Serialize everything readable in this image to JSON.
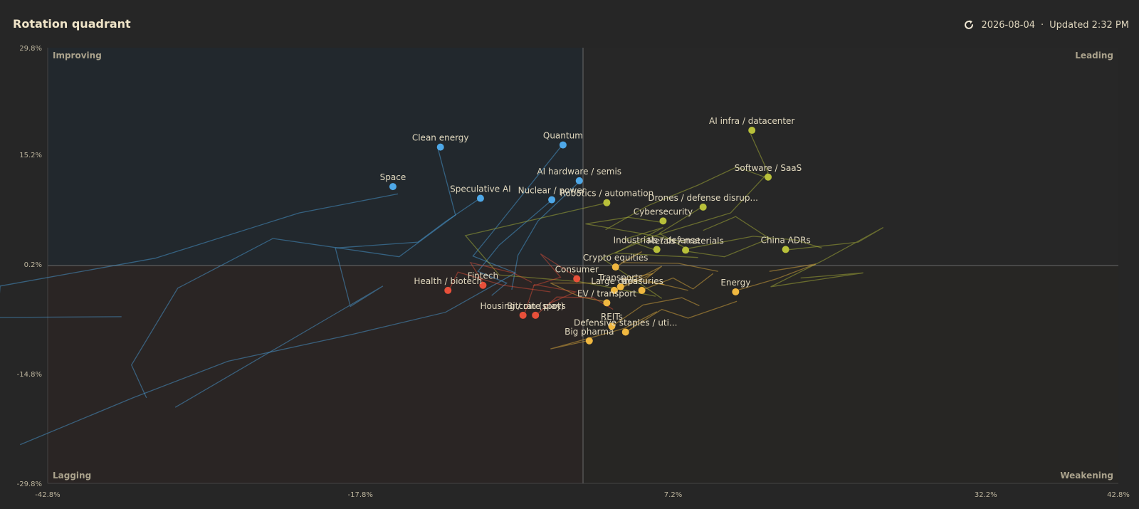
{
  "header": {
    "title": "Rotation quadrant",
    "date": "2026-08-04",
    "separator": " · ",
    "updated": "Updated 2:32 PM"
  },
  "colors": {
    "background": "#262626",
    "improving": "#4ea8e8",
    "leading": "#b8c03a",
    "weakening": "#f0b840",
    "lagging": "#e8503a",
    "axis_line": "#6a6a6a"
  },
  "icons": {
    "refresh": "refresh-icon"
  },
  "chart_data": {
    "type": "scatter",
    "title": "",
    "xlabel": "",
    "ylabel": "",
    "xlim": [
      -42.8,
      42.8
    ],
    "ylim": [
      -29.8,
      29.8
    ],
    "x_ticks": [
      -42.8,
      -17.8,
      7.2,
      32.2,
      42.8
    ],
    "x_tick_labels": [
      "-42.8%",
      "-17.8%",
      "7.2%",
      "32.2%",
      "42.8%"
    ],
    "y_ticks": [
      29.8,
      15.2,
      0.2,
      -14.8,
      -29.8
    ],
    "y_tick_labels": [
      "29.8%",
      "15.2%",
      "0.2%",
      "-14.8%",
      "-29.8%"
    ],
    "quadrants": {
      "top_left": "Improving",
      "top_right": "Leading",
      "bottom_left": "Lagging",
      "bottom_right": "Weakening"
    },
    "grid": false,
    "points": [
      {
        "name": "Space",
        "x": -15.2,
        "y": 10.8,
        "quadrant": "improving",
        "trail": [
          [
            -14.8,
            9.8
          ],
          [
            -22.7,
            7.2
          ],
          [
            -34.2,
            1.0
          ],
          [
            -46.6,
            -2.8
          ],
          [
            -46.8,
            -7.1
          ],
          [
            -36.9,
            -7.0
          ]
        ]
      },
      {
        "name": "Clean energy",
        "x": -11.4,
        "y": 16.2,
        "quadrant": "improving",
        "trail": [
          [
            -11.6,
            16.0
          ],
          [
            -10.2,
            6.9
          ],
          [
            -14.7,
            1.2
          ],
          [
            -24.8,
            3.7
          ],
          [
            -32.4,
            -3.1
          ],
          [
            -36.1,
            -13.6
          ],
          [
            -34.9,
            -18.1
          ]
        ]
      },
      {
        "name": "Speculative AI",
        "x": -8.2,
        "y": 9.2,
        "quadrant": "improving",
        "trail": [
          [
            -8.4,
            9.0
          ],
          [
            -11.0,
            6.0
          ],
          [
            -13.2,
            3.2
          ],
          [
            -19.8,
            2.4
          ],
          [
            -18.6,
            -5.6
          ],
          [
            -16.0,
            -2.8
          ],
          [
            -20.6,
            -7.4
          ],
          [
            -32.6,
            -19.4
          ]
        ]
      },
      {
        "name": "Quantum",
        "x": -1.6,
        "y": 16.5,
        "quadrant": "improving",
        "trail": [
          [
            -1.8,
            16.2
          ],
          [
            -7.5,
            4.0
          ],
          [
            -8.8,
            1.3
          ],
          [
            -5.4,
            -1.0
          ],
          [
            -11.0,
            -6.4
          ],
          [
            -18.4,
            -9.4
          ],
          [
            -28.4,
            -13.1
          ],
          [
            -36.0,
            -18.1
          ],
          [
            -45.0,
            -24.5
          ]
        ]
      },
      {
        "name": "AI hardware / semis",
        "x": -0.3,
        "y": 11.6,
        "quadrant": "improving",
        "trail": [
          [
            -0.4,
            11.3
          ],
          [
            -3.6,
            6.1
          ],
          [
            -5.2,
            1.4
          ],
          [
            -5.7,
            -3.3
          ]
        ]
      },
      {
        "name": "Nuclear / power",
        "x": -2.5,
        "y": 9.0,
        "quadrant": "improving",
        "trail": [
          [
            -2.6,
            8.8
          ],
          [
            -6.7,
            2.8
          ],
          [
            -8.4,
            -0.8
          ],
          [
            -6.1,
            -2.4
          ],
          [
            -7.3,
            -4.1
          ]
        ]
      },
      {
        "name": "AI infra / datacenter",
        "x": 13.5,
        "y": 18.5,
        "quadrant": "leading",
        "trail": [
          [
            13.4,
            18.0
          ],
          [
            14.8,
            12.7
          ],
          [
            11.8,
            7.2
          ],
          [
            5.8,
            4.1
          ],
          [
            1.5,
            1.0
          ],
          [
            4.4,
            -2.3
          ],
          [
            6.3,
            -4.5
          ]
        ]
      },
      {
        "name": "Software / SaaS",
        "x": 14.8,
        "y": 12.1,
        "quadrant": "leading",
        "trail": [
          [
            14.7,
            12.0
          ],
          [
            12.3,
            13.5
          ],
          [
            9.2,
            11.0
          ],
          [
            5.2,
            8.2
          ],
          [
            1.8,
            4.9
          ]
        ]
      },
      {
        "name": "Robotics / automation",
        "x": 1.9,
        "y": 8.6,
        "quadrant": "leading",
        "trail": [
          [
            1.7,
            8.5
          ],
          [
            -9.4,
            4.1
          ],
          [
            -6.7,
            -1.3
          ],
          [
            -0.3,
            -2.2
          ],
          [
            5.8,
            -4.2
          ]
        ]
      },
      {
        "name": "Drones / defense disrup...",
        "x": 9.6,
        "y": 8.0,
        "quadrant": "leading",
        "trail": [
          [
            9.4,
            7.9
          ],
          [
            6.1,
            4.4
          ],
          [
            8.3,
            2.3
          ],
          [
            13.6,
            4.0
          ],
          [
            17.0,
            3.5
          ],
          [
            19.1,
            2.4
          ]
        ]
      },
      {
        "name": "Cybersecurity",
        "x": 6.4,
        "y": 6.1,
        "quadrant": "leading",
        "trail": [
          [
            6.3,
            5.9
          ],
          [
            3.6,
            6.6
          ],
          [
            0.2,
            5.7
          ],
          [
            4.6,
            4.4
          ],
          [
            8.2,
            3.2
          ]
        ]
      },
      {
        "name": "Industrials / defense",
        "x": 5.9,
        "y": 2.2,
        "quadrant": "leading",
        "trail": [
          [
            5.8,
            2.1
          ],
          [
            3.3,
            3.6
          ],
          [
            6.4,
            5.2
          ],
          [
            2.6,
            1.7
          ],
          [
            9.2,
            1.1
          ]
        ]
      },
      {
        "name": "Metals / materials",
        "x": 8.2,
        "y": 2.1,
        "quadrant": "leading",
        "trail": [
          [
            8.1,
            2.0
          ],
          [
            11.3,
            1.2
          ],
          [
            14.9,
            3.7
          ],
          [
            12.2,
            6.7
          ],
          [
            9.6,
            4.8
          ]
        ]
      },
      {
        "name": "China ADRs",
        "x": 16.2,
        "y": 2.2,
        "quadrant": "leading",
        "trail": [
          [
            16.1,
            2.1
          ],
          [
            22.0,
            3.2
          ],
          [
            24.0,
            5.2
          ],
          [
            19.2,
            0.7
          ],
          [
            15.0,
            -2.9
          ],
          [
            22.4,
            -1.0
          ],
          [
            17.4,
            -1.7
          ]
        ]
      },
      {
        "name": "Crypto equities",
        "x": 2.6,
        "y": -0.2,
        "quadrant": "weakening",
        "trail": [
          [
            2.5,
            -0.3
          ],
          [
            4.7,
            1.9
          ],
          [
            3.1,
            0.4
          ],
          [
            7.6,
            0.3
          ],
          [
            10.8,
            -0.8
          ]
        ]
      },
      {
        "name": "Consumer",
        "x": -0.5,
        "y": -1.8,
        "quadrant": "lagging",
        "trail": [
          [
            -0.4,
            -1.7
          ],
          [
            -3.4,
            1.6
          ],
          [
            -1.8,
            -1.6
          ],
          [
            -4.0,
            -2.8
          ]
        ]
      },
      {
        "name": "Transports",
        "x": 3.0,
        "y": -2.9,
        "quadrant": "weakening",
        "trail": [
          [
            3.1,
            -2.9
          ],
          [
            6.3,
            -0.1
          ],
          [
            4.9,
            -2.0
          ],
          [
            8.4,
            -3.4
          ]
        ]
      },
      {
        "name": "Large caps",
        "x": 2.5,
        "y": -3.4,
        "quadrant": "weakening",
        "trail": [
          [
            2.6,
            -3.4
          ],
          [
            5.6,
            -1.1
          ],
          [
            3.2,
            -1.8
          ],
          [
            6.5,
            -2.6
          ]
        ]
      },
      {
        "name": "Treasuries",
        "x": 4.7,
        "y": -3.4,
        "quadrant": "weakening",
        "trail": [
          [
            4.8,
            -3.3
          ],
          [
            7.2,
            -1.7
          ],
          [
            8.8,
            -3.2
          ],
          [
            10.4,
            -1.1
          ]
        ]
      },
      {
        "name": "Energy",
        "x": 12.2,
        "y": -3.6,
        "quadrant": "weakening",
        "trail": [
          [
            12.1,
            -3.5
          ],
          [
            15.5,
            -1.8
          ],
          [
            18.6,
            0.2
          ],
          [
            14.9,
            -0.8
          ]
        ]
      },
      {
        "name": "EV / transport",
        "x": 1.9,
        "y": -5.1,
        "quadrant": "weakening",
        "trail": [
          [
            2.0,
            -5.0
          ],
          [
            -0.2,
            -4.3
          ],
          [
            -2.6,
            -2.4
          ],
          [
            1.2,
            -2.4
          ]
        ]
      },
      {
        "name": "Fintech",
        "x": -8.0,
        "y": -2.7,
        "quadrant": "lagging",
        "trail": [
          [
            -7.9,
            -2.6
          ],
          [
            -9.0,
            0.4
          ],
          [
            -5.6,
            -1.0
          ],
          [
            -4.1,
            -2.3
          ]
        ]
      },
      {
        "name": "Health / biotech",
        "x": -10.8,
        "y": -3.4,
        "quadrant": "lagging",
        "trail": [
          [
            -10.7,
            -3.3
          ],
          [
            -10.0,
            -0.9
          ],
          [
            -6.4,
            -2.7
          ],
          [
            -2.6,
            -3.6
          ]
        ]
      },
      {
        "name": "Housing / rate plays",
        "x": -4.8,
        "y": -6.8,
        "quadrant": "lagging",
        "trail": [
          [
            -4.7,
            -6.7
          ],
          [
            -3.9,
            -2.6
          ],
          [
            -0.6,
            -3.6
          ],
          [
            -2.7,
            -5.2
          ]
        ]
      },
      {
        "name": "Bitcoin (spot)",
        "x": -3.8,
        "y": -6.8,
        "quadrant": "lagging",
        "trail": [
          [
            -3.7,
            -6.7
          ],
          [
            -2.1,
            -4.3
          ],
          [
            0.8,
            -4.4
          ],
          [
            2.4,
            -6.0
          ]
        ]
      },
      {
        "name": "REITs",
        "x": 2.3,
        "y": -8.3,
        "quadrant": "weakening",
        "trail": [
          [
            2.4,
            -8.2
          ],
          [
            4.8,
            -5.4
          ],
          [
            7.9,
            -4.4
          ],
          [
            9.3,
            -5.5
          ]
        ]
      },
      {
        "name": "Defensive staples / uti...",
        "x": 3.4,
        "y": -9.1,
        "quadrant": "weakening",
        "trail": [
          [
            3.5,
            -9.0
          ],
          [
            6.3,
            -6.0
          ],
          [
            8.4,
            -7.2
          ],
          [
            12.3,
            -4.9
          ]
        ]
      },
      {
        "name": "Big pharma",
        "x": 0.5,
        "y": -10.3,
        "quadrant": "weakening",
        "trail": [
          [
            0.6,
            -10.2
          ],
          [
            -2.6,
            -11.4
          ],
          [
            3.3,
            -8.6
          ],
          [
            5.9,
            -6.3
          ]
        ]
      }
    ]
  }
}
